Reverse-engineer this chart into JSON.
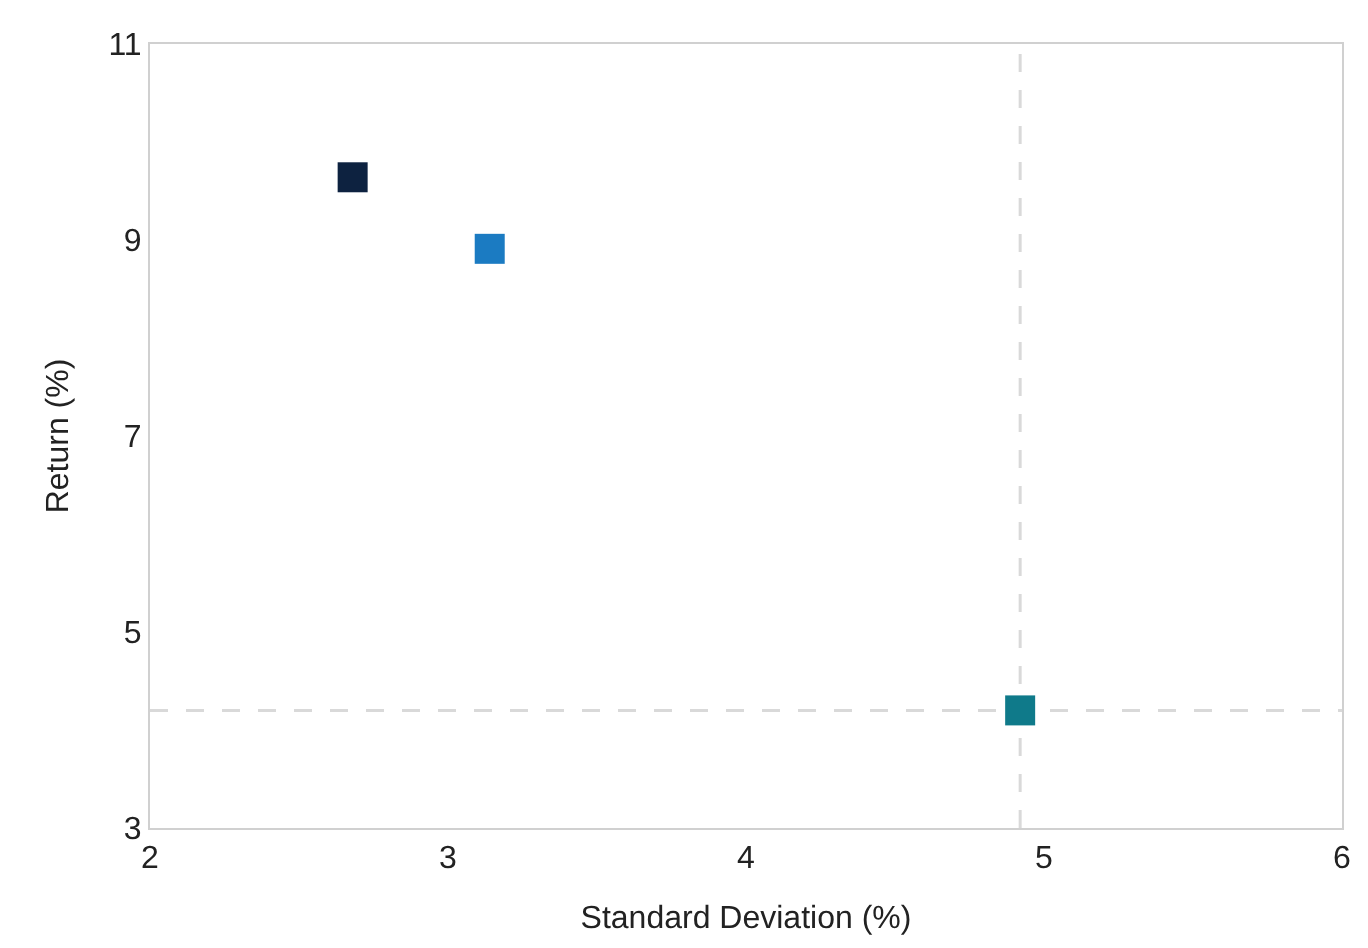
{
  "chart_data": {
    "type": "scatter",
    "xlabel": "Standard Deviation (%)",
    "ylabel": "Return (%)",
    "x": [
      2.68,
      3.14,
      4.92
    ],
    "values": [
      9.64,
      8.91,
      4.2
    ],
    "colors": [
      "#0d2240",
      "#1b7bc2",
      "#0f7a8a"
    ],
    "marker": "square",
    "grid": false,
    "xlim": [
      2,
      6
    ],
    "xticks": [
      2,
      3,
      4,
      5,
      6
    ],
    "ylim": [
      3,
      11
    ],
    "yticks": [
      3,
      5,
      7,
      9,
      11
    ],
    "ref_lines": [
      {
        "axis": "x",
        "value": 4.92,
        "color": "#d9d9d9",
        "line_style": "dashed"
      },
      {
        "axis": "y",
        "value": 4.2,
        "color": "#d9d9d9",
        "line_style": "dashed"
      }
    ]
  }
}
